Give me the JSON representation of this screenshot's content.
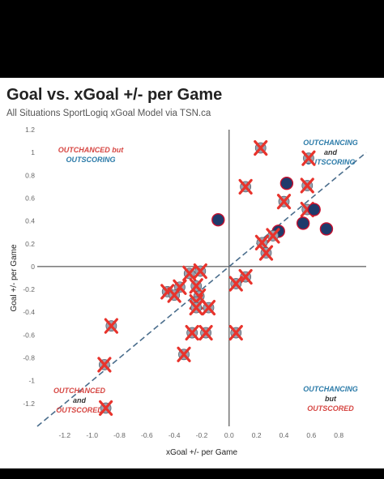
{
  "header": {
    "title": "Goal vs. xGoal +/- per Game",
    "subtitle": "All Situations SportLogiq xGoal Model via TSN.ca"
  },
  "colors": {
    "red": "#d64541",
    "blue": "#2a7aa8",
    "marker": "#e8332c",
    "diagonal": "#4a6d8c",
    "axis_line": "#333333",
    "tick": "#666666"
  },
  "chart_data": {
    "type": "scatter",
    "title": "Goal vs. xGoal +/- per Game",
    "subtitle": "All Situations SportLogiq xGoal Model via TSN.ca",
    "xlabel": "xGoal +/- per Game",
    "ylabel": "Goal +/- per Game",
    "xlim": [
      -1.4,
      1.0
    ],
    "ylim": [
      -1.4,
      1.2
    ],
    "x_ticks": [
      -1.2,
      -1.0,
      -0.8,
      -0.6,
      -0.4,
      -0.2,
      0.0,
      0.2,
      0.4,
      0.6,
      0.8
    ],
    "x_tick_labels": [
      "-1.2",
      "-1.0",
      "-0.8",
      "-0.6",
      "-0.4",
      "-0.2",
      "0.0",
      "0.2",
      "0.4",
      "0.6",
      "0.8"
    ],
    "y_ticks": [
      -1.2,
      -1.0,
      -0.8,
      -0.6,
      -0.4,
      -0.2,
      0.0,
      0.2,
      0.4,
      0.6,
      0.8,
      1.0,
      1.2
    ],
    "y_tick_labels": [
      "-1.2",
      "-1",
      "-0.8",
      "-0.6",
      "-0.4",
      "-0.2",
      "0",
      "0.2",
      "0.4",
      "0.6",
      "0.8",
      "1",
      "1.2"
    ],
    "diagonal": "y = x",
    "grid": false,
    "quadrant_labels": [
      {
        "position": "top-left",
        "lines": [
          "OUTCHANCED but",
          "OUTSCORING"
        ]
      },
      {
        "position": "top-right",
        "lines": [
          "OUTCHANCING",
          "and",
          "OUTSCORING"
        ]
      },
      {
        "position": "bottom-left",
        "lines": [
          "OUTCHANCED",
          "and",
          "OUTSCORED"
        ]
      },
      {
        "position": "bottom-right",
        "lines": [
          "OUTCHANCING",
          "but",
          "OUTSCORED"
        ]
      }
    ],
    "points": [
      {
        "x": 0.23,
        "y": 1.04,
        "team": "eliminated"
      },
      {
        "x": 0.58,
        "y": 0.95,
        "team": "eliminated"
      },
      {
        "x": 0.42,
        "y": 0.73,
        "team": "advancing"
      },
      {
        "x": 0.57,
        "y": 0.71,
        "team": "eliminated"
      },
      {
        "x": 0.12,
        "y": 0.7,
        "team": "eliminated"
      },
      {
        "x": 0.4,
        "y": 0.57,
        "team": "eliminated"
      },
      {
        "x": 0.57,
        "y": 0.5,
        "team": "eliminated"
      },
      {
        "x": 0.62,
        "y": 0.5,
        "team": "advancing"
      },
      {
        "x": -0.08,
        "y": 0.41,
        "team": "advancing"
      },
      {
        "x": 0.54,
        "y": 0.38,
        "team": "advancing"
      },
      {
        "x": 0.71,
        "y": 0.33,
        "team": "advancing"
      },
      {
        "x": 0.36,
        "y": 0.31,
        "team": "advancing"
      },
      {
        "x": 0.32,
        "y": 0.27,
        "team": "eliminated"
      },
      {
        "x": 0.24,
        "y": 0.21,
        "team": "eliminated"
      },
      {
        "x": 0.27,
        "y": 0.12,
        "team": "eliminated"
      },
      {
        "x": -0.29,
        "y": -0.06,
        "team": "eliminated"
      },
      {
        "x": -0.21,
        "y": -0.04,
        "team": "eliminated"
      },
      {
        "x": 0.12,
        "y": -0.09,
        "team": "eliminated"
      },
      {
        "x": 0.05,
        "y": -0.15,
        "team": "eliminated"
      },
      {
        "x": -0.36,
        "y": -0.18,
        "team": "eliminated"
      },
      {
        "x": -0.24,
        "y": -0.17,
        "team": "eliminated"
      },
      {
        "x": -0.45,
        "y": -0.22,
        "team": "eliminated"
      },
      {
        "x": -0.4,
        "y": -0.25,
        "team": "eliminated"
      },
      {
        "x": -0.22,
        "y": -0.26,
        "team": "eliminated"
      },
      {
        "x": -0.24,
        "y": -0.31,
        "team": "eliminated"
      },
      {
        "x": -0.24,
        "y": -0.36,
        "team": "eliminated"
      },
      {
        "x": -0.15,
        "y": -0.36,
        "team": "eliminated"
      },
      {
        "x": -0.86,
        "y": -0.52,
        "team": "eliminated"
      },
      {
        "x": -0.27,
        "y": -0.58,
        "team": "eliminated"
      },
      {
        "x": -0.17,
        "y": -0.58,
        "team": "eliminated"
      },
      {
        "x": 0.05,
        "y": -0.58,
        "team": "eliminated"
      },
      {
        "x": -0.33,
        "y": -0.77,
        "team": "eliminated"
      },
      {
        "x": -0.91,
        "y": -0.86,
        "team": "eliminated"
      },
      {
        "x": -0.9,
        "y": -1.24,
        "team": "eliminated"
      }
    ]
  }
}
